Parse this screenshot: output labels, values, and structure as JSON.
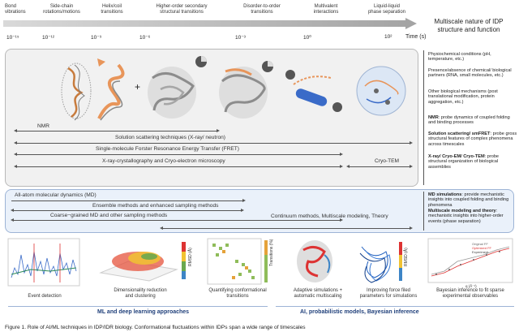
{
  "timeline": {
    "labels": [
      {
        "text": "Bond\nvibrations"
      },
      {
        "text": "Side-chain\nrotations/motions"
      },
      {
        "text": "Helix/coil\ntransitions"
      },
      {
        "text": "Higher-order secondary\nstructural transitions"
      },
      {
        "text": "Disorder-to-order\ntransitions"
      },
      {
        "text": "Multivalent\ninteractions"
      },
      {
        "text": "Liquid-liquid\nphase separation"
      }
    ],
    "ticks": [
      "10⁻¹⁵",
      "10⁻¹²",
      "10⁻⁹",
      "10⁻⁶",
      "10⁻³",
      "10⁰",
      "10²"
    ],
    "unit": "Time (s)",
    "heading": "Multiscale nature of IDP\nstructure and function"
  },
  "experimental": {
    "methods": [
      "NMR",
      "Solution scattering techniques (X-ray/ neutron)",
      "Single-molecule Forster Resonance Energy Transfer (FRET)",
      "X-ray-crystallography and Cryo-electron microscopy",
      "Cryo-TEM"
    ],
    "plus": "+",
    "side_notes": [
      "Physiochemical conditions (pH, temperature, etc.)",
      "Presence/absence of chemical/ biological partners (RNA, small molecules, etc.)",
      "Other biological mechanisms (post translational modification, protein aggregation, etc.)"
    ],
    "probe_notes": [
      {
        "bold": "NMR",
        "text": ": probe dynamics of coupled folding and binding processes"
      },
      {
        "bold": "Solution scattering/ smFRET",
        "text": ": probe gross structural features of complex phenomena across timescales"
      },
      {
        "bold": "X-ray/ Cryo-EM/ Cryo-TEM",
        "text": ": probe structural organization of biological assemblies"
      }
    ]
  },
  "simulation": {
    "methods": [
      "All-atom molecular dynamics (MD)",
      "Ensemble methods and enhanced sampling methods",
      "Coarse−grained MD and other sampling methods",
      "Continuum methods, Multiscale modeling, Theory"
    ],
    "notes": [
      {
        "bold": "MD simulations",
        "text": ": provide mechanistic insights into coupled folding and binding phenomena"
      },
      {
        "bold": "Multiscale modeling and theory",
        "text": ": mechanistic insights into higher-order events (phase separation)"
      }
    ]
  },
  "approaches": {
    "ml": {
      "items": [
        "Event detection",
        "Dimensionality reduction\nand clustering",
        "Quantifying conformational\ntransitions"
      ],
      "title": "ML and deep learning approaches",
      "axis_labels": [
        "RMSD (Å)",
        "Transitions (%)"
      ]
    },
    "ai": {
      "items": [
        "Adaptive simulations +\nautomatic multiscaling",
        "Improving force filed\nparameters for simulations",
        "Bayesian inference to fit sparse\nexperimental observables"
      ],
      "title": "AI, probabilistic models, Bayesian inference",
      "legend": [
        "Original FF",
        "Optimized FF",
        "Experiment"
      ],
      "axis_labels": [
        "q (Å⁻¹)",
        "RMSD (Å)"
      ]
    }
  },
  "caption": "Figure 1. Role of AI/ML techniques in IDP/IDR biology. Conformational fluctuations within IDPs span a wide range of timescales"
}
